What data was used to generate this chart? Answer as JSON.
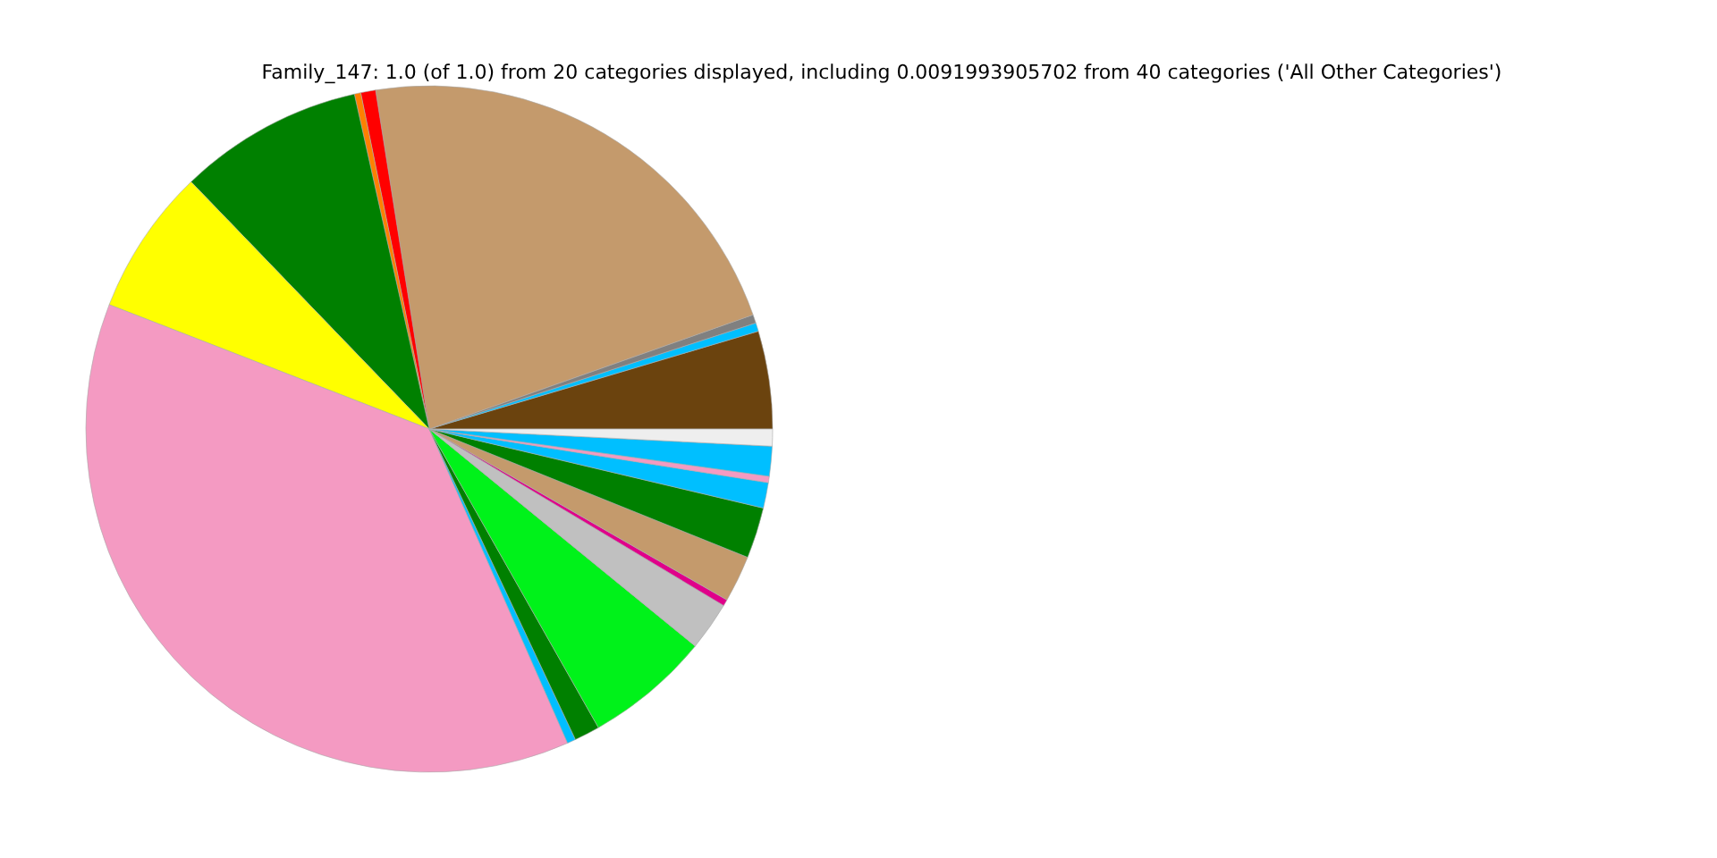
{
  "chart_data": {
    "type": "pie",
    "title": "Family_147: 1.0 (of 1.0) from 20 categories displayed, including 0.0091993905702 from 40 categories ('All Other Categories')",
    "categories": [
      null,
      null,
      null,
      null,
      null,
      null,
      null,
      null,
      null,
      null,
      null,
      null,
      null,
      null,
      null,
      null,
      null,
      null,
      null,
      null
    ],
    "values": [
      4.6,
      0.4,
      0.4,
      22.1,
      0.7,
      0.3,
      8.7,
      6.9,
      37.5,
      0.4,
      1.2,
      5.9,
      2.3,
      0.3,
      2.2,
      2.4,
      1.2,
      0.3,
      1.4,
      0.8
    ],
    "colors": [
      "#6b430e",
      "#00bfff",
      "#808080",
      "#c49a6c",
      "#ff0000",
      "#ff8000",
      "#008000",
      "#ffff00",
      "#f49ac2",
      "#00bfff",
      "#008000",
      "#00f21a",
      "#c0c0c0",
      "#e0008a",
      "#c49a6c",
      "#008000",
      "#00bfff",
      "#f49ac2",
      "#00bfff",
      "#eeeeee"
    ]
  }
}
